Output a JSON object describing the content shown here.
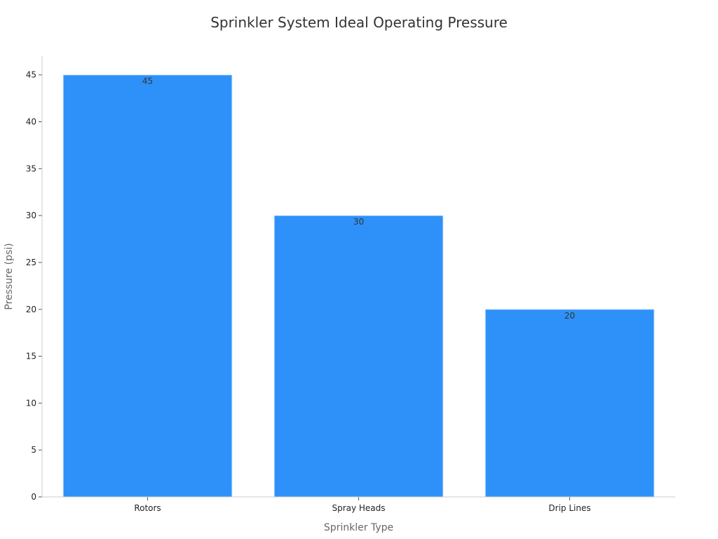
{
  "chart_data": {
    "type": "bar",
    "title": "Sprinkler System Ideal Operating Pressure",
    "xlabel": "Sprinkler Type",
    "ylabel": "Pressure (psi)",
    "categories": [
      "Rotors",
      "Spray Heads",
      "Drip Lines"
    ],
    "values": [
      45,
      30,
      20
    ],
    "data_labels": [
      "45",
      "30",
      "20"
    ],
    "ylim": [
      0,
      47
    ],
    "yticks": [
      0,
      5,
      10,
      15,
      20,
      25,
      30,
      35,
      40,
      45
    ],
    "grid": false,
    "legend": "none",
    "bar_color": "#2e91fa",
    "bar_edge_color": "#cfe3fb",
    "axis_color": "#cccccc"
  }
}
